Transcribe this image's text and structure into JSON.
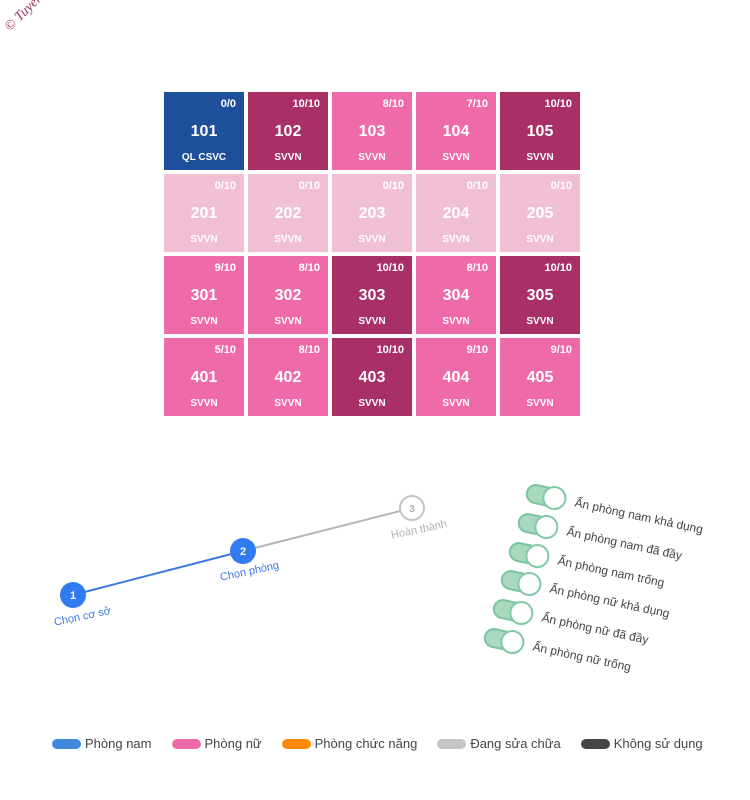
{
  "watermark": "© Tuyen Bui",
  "colors": {
    "manager": "#1e4f9a",
    "female_full": "#a83066",
    "female_partial": "#ee6aa8",
    "female_empty": "#f1bfd5",
    "male": "#3e88e0",
    "female": "#ee6aa8",
    "function": "#ff8a00",
    "repair": "#c4c4c4",
    "unused": "#454545",
    "toggle": "#a8d8c0"
  },
  "rooms": [
    {
      "number": "101",
      "occupancy": "0/0",
      "type": "QL CSVC",
      "status": "manager"
    },
    {
      "number": "102",
      "occupancy": "10/10",
      "type": "SVVN",
      "status": "female_full"
    },
    {
      "number": "103",
      "occupancy": "8/10",
      "type": "SVVN",
      "status": "female_partial"
    },
    {
      "number": "104",
      "occupancy": "7/10",
      "type": "SVVN",
      "status": "female_partial"
    },
    {
      "number": "105",
      "occupancy": "10/10",
      "type": "SVVN",
      "status": "female_full"
    },
    {
      "number": "201",
      "occupancy": "0/10",
      "type": "SVVN",
      "status": "female_empty"
    },
    {
      "number": "202",
      "occupancy": "0/10",
      "type": "SVVN",
      "status": "female_empty"
    },
    {
      "number": "203",
      "occupancy": "0/10",
      "type": "SVVN",
      "status": "female_empty"
    },
    {
      "number": "204",
      "occupancy": "0/10",
      "type": "SVVN",
      "status": "female_empty"
    },
    {
      "number": "205",
      "occupancy": "0/10",
      "type": "SVVN",
      "status": "female_empty"
    },
    {
      "number": "301",
      "occupancy": "9/10",
      "type": "SVVN",
      "status": "female_partial"
    },
    {
      "number": "302",
      "occupancy": "8/10",
      "type": "SVVN",
      "status": "female_partial"
    },
    {
      "number": "303",
      "occupancy": "10/10",
      "type": "SVVN",
      "status": "female_full"
    },
    {
      "number": "304",
      "occupancy": "8/10",
      "type": "SVVN",
      "status": "female_partial"
    },
    {
      "number": "305",
      "occupancy": "10/10",
      "type": "SVVN",
      "status": "female_full"
    },
    {
      "number": "401",
      "occupancy": "5/10",
      "type": "SVVN",
      "status": "female_partial"
    },
    {
      "number": "402",
      "occupancy": "8/10",
      "type": "SVVN",
      "status": "female_partial"
    },
    {
      "number": "403",
      "occupancy": "10/10",
      "type": "SVVN",
      "status": "female_full"
    },
    {
      "number": "404",
      "occupancy": "9/10",
      "type": "SVVN",
      "status": "female_partial"
    },
    {
      "number": "405",
      "occupancy": "9/10",
      "type": "SVVN",
      "status": "female_partial"
    }
  ],
  "stepper": {
    "steps": [
      {
        "number": "1",
        "label": "Chọn cơ sở",
        "state": "done"
      },
      {
        "number": "2",
        "label": "Chọn phòng",
        "state": "active"
      },
      {
        "number": "3",
        "label": "Hoàn thành",
        "state": "pending"
      }
    ]
  },
  "toggles": [
    {
      "label": "Ẩn phòng nam khả dụng",
      "on": true
    },
    {
      "label": "Ẩn phòng nam đã đầy",
      "on": true
    },
    {
      "label": "Ẩn phòng nam trống",
      "on": true
    },
    {
      "label": "Ẩn phòng nữ khả dụng",
      "on": true
    },
    {
      "label": "Ẩn phòng nữ đã đầy",
      "on": true
    },
    {
      "label": "Ẩn phòng nữ trống",
      "on": true
    }
  ],
  "legend": [
    {
      "label": "Phòng nam",
      "color": "#3e88e0"
    },
    {
      "label": "Phòng nữ",
      "color": "#ee6aa8"
    },
    {
      "label": "Phòng chức năng",
      "color": "#ff8a00"
    },
    {
      "label": "Đang sửa chữa",
      "color": "#c4c4c4"
    },
    {
      "label": "Không sử dụng",
      "color": "#454545"
    }
  ]
}
